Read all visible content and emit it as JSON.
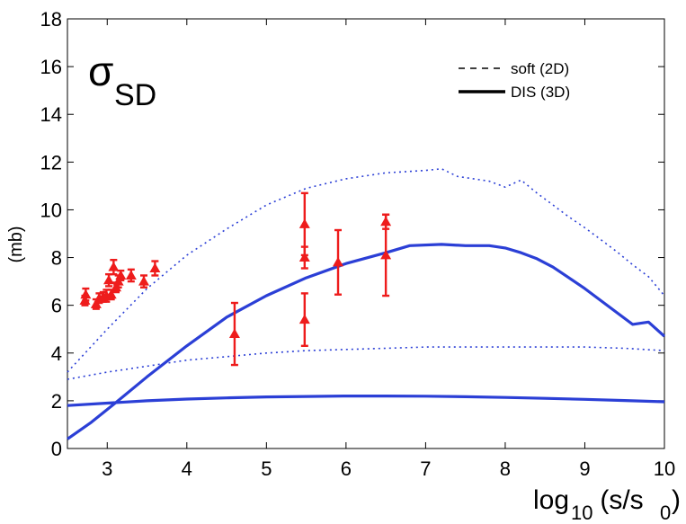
{
  "chart_data": {
    "type": "line",
    "title": {
      "symbol": "σ",
      "subscript": "SD"
    },
    "ylabel": "(mb)",
    "xlabel": {
      "base": "log",
      "sub": "10",
      "rest": " (s/s",
      "sub2": "0",
      "end": ")"
    },
    "xlim": [
      2.5,
      10
    ],
    "ylim": [
      0,
      18
    ],
    "xticks": [
      3,
      4,
      5,
      6,
      7,
      8,
      9,
      10
    ],
    "yticks": [
      0,
      2,
      4,
      6,
      8,
      10,
      12,
      14,
      16,
      18
    ],
    "grid": false,
    "legend": {
      "placement": "top-right",
      "entries": [
        {
          "label": "soft (2D)",
          "style": "dashed"
        },
        {
          "label": "DIS (3D)",
          "style": "solid"
        }
      ]
    },
    "series": [
      {
        "name": "upper-dotted",
        "style": "dotted",
        "color": "#2b3fd6",
        "x": [
          2.5,
          3.0,
          3.5,
          4.0,
          4.5,
          5.0,
          5.5,
          6.0,
          6.5,
          7.0,
          7.2,
          7.4,
          7.6,
          7.8,
          8.0,
          8.2,
          8.4,
          8.6,
          8.8,
          9.0,
          9.2,
          9.4,
          9.6,
          9.8,
          10.0
        ],
        "y": [
          3.2,
          5.0,
          6.7,
          8.1,
          9.2,
          10.2,
          10.9,
          11.3,
          11.55,
          11.65,
          11.72,
          11.4,
          11.3,
          11.2,
          10.95,
          11.25,
          10.7,
          10.2,
          9.7,
          9.25,
          8.75,
          8.25,
          7.7,
          7.2,
          6.4
        ]
      },
      {
        "name": "lower-dotted",
        "style": "dotted",
        "color": "#2b3fd6",
        "x": [
          2.5,
          3.0,
          3.5,
          4.0,
          4.5,
          5.0,
          5.5,
          6.0,
          6.5,
          7.0,
          7.5,
          8.0,
          8.5,
          9.0,
          9.5,
          10.0
        ],
        "y": [
          2.9,
          3.2,
          3.45,
          3.7,
          3.85,
          4.0,
          4.1,
          4.15,
          4.2,
          4.25,
          4.25,
          4.25,
          4.25,
          4.25,
          4.2,
          4.1
        ]
      },
      {
        "name": "steep-solid",
        "style": "solid",
        "color": "#2b3fd6",
        "x": [
          2.5,
          2.8,
          3.1,
          3.5,
          4.0,
          4.5,
          5.0,
          5.5,
          6.0,
          6.5,
          6.8,
          7.2,
          7.5,
          7.8,
          8.0,
          8.2,
          8.4,
          8.6,
          8.8,
          9.0,
          9.2,
          9.4,
          9.6,
          9.8,
          10.0
        ],
        "y": [
          0.4,
          1.1,
          1.9,
          3.0,
          4.3,
          5.5,
          6.4,
          7.15,
          7.75,
          8.2,
          8.5,
          8.55,
          8.5,
          8.5,
          8.4,
          8.2,
          7.95,
          7.6,
          7.15,
          6.7,
          6.2,
          5.7,
          5.2,
          5.3,
          4.7
        ]
      },
      {
        "name": "flat-solid",
        "style": "solid",
        "color": "#2b3fd6",
        "x": [
          2.5,
          3.0,
          3.5,
          4.0,
          4.5,
          5.0,
          5.5,
          6.0,
          6.5,
          7.0,
          7.5,
          8.0,
          8.5,
          9.0,
          9.5,
          10.0
        ],
        "y": [
          1.8,
          1.9,
          2.0,
          2.07,
          2.12,
          2.16,
          2.18,
          2.2,
          2.2,
          2.19,
          2.17,
          2.14,
          2.1,
          2.06,
          2.01,
          1.96
        ]
      }
    ],
    "data_points": {
      "name": "measurements",
      "marker": "triangle",
      "color": "#ee1c1c",
      "points": [
        {
          "x": 2.72,
          "y": 6.2,
          "err": 0.2
        },
        {
          "x": 2.73,
          "y": 6.45,
          "err": 0.25
        },
        {
          "x": 2.86,
          "y": 6.05,
          "err": 0.2
        },
        {
          "x": 2.9,
          "y": 6.3,
          "err": 0.2
        },
        {
          "x": 2.95,
          "y": 6.35,
          "err": 0.2
        },
        {
          "x": 2.99,
          "y": 6.4,
          "err": 0.25
        },
        {
          "x": 3.02,
          "y": 7.05,
          "err": 0.25
        },
        {
          "x": 3.05,
          "y": 6.45,
          "err": 0.2
        },
        {
          "x": 3.08,
          "y": 7.6,
          "err": 0.3
        },
        {
          "x": 3.11,
          "y": 6.75,
          "err": 0.2
        },
        {
          "x": 3.14,
          "y": 7.0,
          "err": 0.25
        },
        {
          "x": 3.17,
          "y": 7.25,
          "err": 0.2
        },
        {
          "x": 3.3,
          "y": 7.25,
          "err": 0.25
        },
        {
          "x": 3.46,
          "y": 7.0,
          "err": 0.25
        },
        {
          "x": 3.6,
          "y": 7.55,
          "err": 0.3
        },
        {
          "x": 4.6,
          "y": 4.8,
          "err": 1.3
        },
        {
          "x": 5.48,
          "y": 5.4,
          "err": 1.1
        },
        {
          "x": 5.48,
          "y": 8.0,
          "err": 0.45
        },
        {
          "x": 5.48,
          "y": 9.4,
          "err": 1.3
        },
        {
          "x": 5.9,
          "y": 7.8,
          "err": 1.35
        },
        {
          "x": 6.5,
          "y": 8.1,
          "err": 1.7
        },
        {
          "x": 6.5,
          "y": 9.5,
          "err": 0.3
        }
      ]
    }
  }
}
